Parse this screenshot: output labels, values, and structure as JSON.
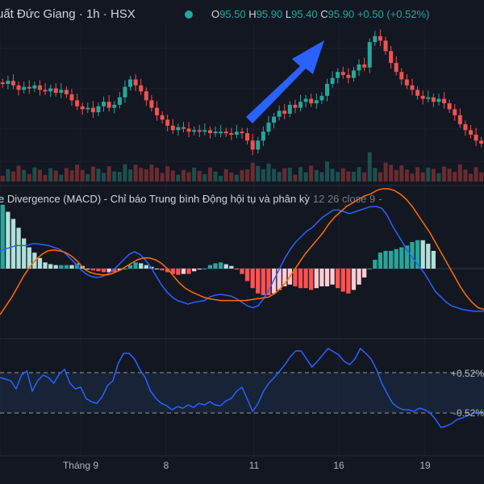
{
  "header": {
    "symbol": "uất Đức Giang",
    "interval": "1h",
    "exchange": "HSX",
    "o_label": "O",
    "o": "95.50",
    "h_label": "H",
    "h": "95.90",
    "l_label": "L",
    "l": "95.40",
    "c_label": "C",
    "c": "95.90",
    "change": "+0.50 (+0.52%)"
  },
  "macd_panel": {
    "title": "e Divergence (MACD) - Chỉ báo Trung bình Động hội tụ và phân kỳ",
    "params": "12 26 close 9",
    "more": "-"
  },
  "rsi_panel": {
    "upper_label": "+0.52%",
    "lower_label": "-0.52%"
  },
  "x_axis": [
    "Tháng 9",
    "8",
    "11",
    "16",
    "19"
  ],
  "colors": {
    "up": "#26a69a",
    "down": "#ef5350",
    "macd_line": "#2962ff",
    "signal_line": "#ff6d00",
    "arrow": "#2962ff"
  },
  "chart_data": {
    "type": "candlestick",
    "series": [
      {
        "name": "price",
        "close": [
          95.0,
          95.2,
          94.9,
          94.6,
          94.8,
          94.7,
          94.9,
          94.6,
          94.5,
          94.7,
          94.4,
          94.6,
          94.3,
          93.9,
          93.5,
          93.3,
          93.4,
          93.1,
          93.5,
          93.8,
          93.4,
          93.6,
          94.1,
          94.8,
          95.3,
          94.9,
          94.5,
          93.9,
          93.4,
          92.9,
          92.6,
          92.2,
          91.9,
          92.1,
          92.0,
          91.8,
          91.9,
          91.8,
          91.9,
          91.7,
          91.8,
          91.8,
          91.7,
          91.6,
          91.8,
          91.7,
          91.2,
          90.6,
          91.2,
          91.8,
          92.4,
          92.8,
          93.2,
          93.0,
          93.6,
          93.4,
          93.8,
          94.0,
          93.7,
          93.9,
          94.2,
          95.0,
          95.4,
          95.8,
          95.6,
          95.4,
          95.9,
          96.3,
          96.1,
          97.8,
          98.2,
          97.9,
          97.2,
          96.4,
          95.8,
          95.3,
          94.9,
          94.6,
          94.2,
          94.0,
          94.1,
          93.8,
          94.0,
          93.7,
          93.3,
          92.9,
          92.3,
          91.9,
          91.6,
          91.2,
          91.0
        ]
      },
      {
        "name": "macd",
        "values": [
          1.0,
          1.1,
          1.2,
          1.3,
          1.3,
          1.3,
          1.4,
          1.4,
          1.35,
          1.3,
          1.2,
          1.1,
          0.9,
          0.6,
          0.3,
          -0.05,
          -0.3,
          -0.45,
          -0.5,
          -0.45,
          -0.3,
          -0.1,
          0.2,
          0.5,
          0.8,
          0.95,
          0.8,
          0.5,
          0.1,
          -0.4,
          -0.9,
          -1.3,
          -1.6,
          -1.8,
          -1.9,
          -2.0,
          -1.9,
          -1.85,
          -1.8,
          -1.6,
          -1.5,
          -1.45,
          -1.5,
          -1.55,
          -1.7,
          -1.9,
          -2.1,
          -2.2,
          -2.1,
          -1.7,
          -1.2,
          -0.6,
          0.0,
          0.6,
          1.1,
          1.5,
          1.8,
          2.1,
          2.3,
          2.6,
          2.9,
          3.1,
          3.3,
          3.3,
          3.2,
          3.1,
          3.2,
          3.3,
          3.4,
          3.5,
          3.5,
          3.4,
          3.0,
          2.4,
          1.9,
          1.4,
          0.9,
          0.5,
          0.1,
          -0.3,
          -0.8,
          -1.3,
          -1.6,
          -1.9,
          -2.1,
          -2.2,
          -2.3,
          -2.35,
          -2.4,
          -2.4,
          -2.4
        ]
      },
      {
        "name": "signal",
        "values": [
          -2.6,
          -2.1,
          -1.6,
          -1.0,
          -0.4,
          0.1,
          0.5,
          0.8,
          1.0,
          1.05,
          1.0,
          0.9,
          0.7,
          0.4,
          0.0,
          -0.2,
          -0.3,
          -0.35,
          -0.35,
          -0.25,
          -0.1,
          0.1,
          0.3,
          0.5,
          0.6,
          0.6,
          0.5,
          0.3,
          0.0,
          -0.4,
          -0.8,
          -1.1,
          -1.3,
          -1.45,
          -1.6,
          -1.7,
          -1.75,
          -1.8,
          -1.8,
          -1.8,
          -1.8,
          -1.8,
          -1.75,
          -1.7,
          -1.65,
          -1.6,
          -1.4,
          -1.1,
          -0.7,
          -0.2,
          0.3,
          0.8,
          1.2,
          1.6,
          2.0,
          2.5,
          2.9,
          3.2,
          3.5,
          3.7,
          3.9,
          4.1,
          4.2,
          4.4,
          4.5,
          4.5,
          4.4,
          4.2,
          3.9,
          3.5,
          3.0,
          2.5,
          2.0,
          1.4,
          0.8,
          0.2,
          -0.4,
          -1.0,
          -1.5,
          -1.9,
          -2.2,
          -2.3
        ]
      },
      {
        "name": "rsi",
        "values": [
          0.62,
          0.6,
          0.58,
          0.48,
          0.65,
          0.7,
          0.45,
          0.58,
          0.65,
          0.62,
          0.55,
          0.66,
          0.72,
          0.55,
          0.48,
          0.5,
          0.36,
          0.32,
          0.3,
          0.38,
          0.52,
          0.58,
          0.8,
          0.92,
          0.92,
          0.85,
          0.72,
          0.62,
          0.45,
          0.36,
          0.3,
          0.27,
          0.22,
          0.26,
          0.24,
          0.28,
          0.25,
          0.3,
          0.28,
          0.32,
          0.28,
          0.27,
          0.33,
          0.36,
          0.45,
          0.5,
          0.35,
          0.2,
          0.3,
          0.45,
          0.55,
          0.62,
          0.7,
          0.78,
          0.88,
          0.95,
          0.95,
          0.85,
          0.75,
          0.82,
          0.9,
          0.98,
          0.94,
          0.9,
          0.82,
          0.78,
          0.85,
          0.98,
          0.92,
          0.85,
          0.72,
          0.55,
          0.42,
          0.3,
          0.25,
          0.22,
          0.22,
          0.2,
          0.24,
          0.22,
          0.18,
          0.1,
          0.0,
          0.02,
          0.05,
          0.1,
          0.12,
          0.15,
          0.18,
          0.18,
          0.2
        ]
      }
    ]
  }
}
